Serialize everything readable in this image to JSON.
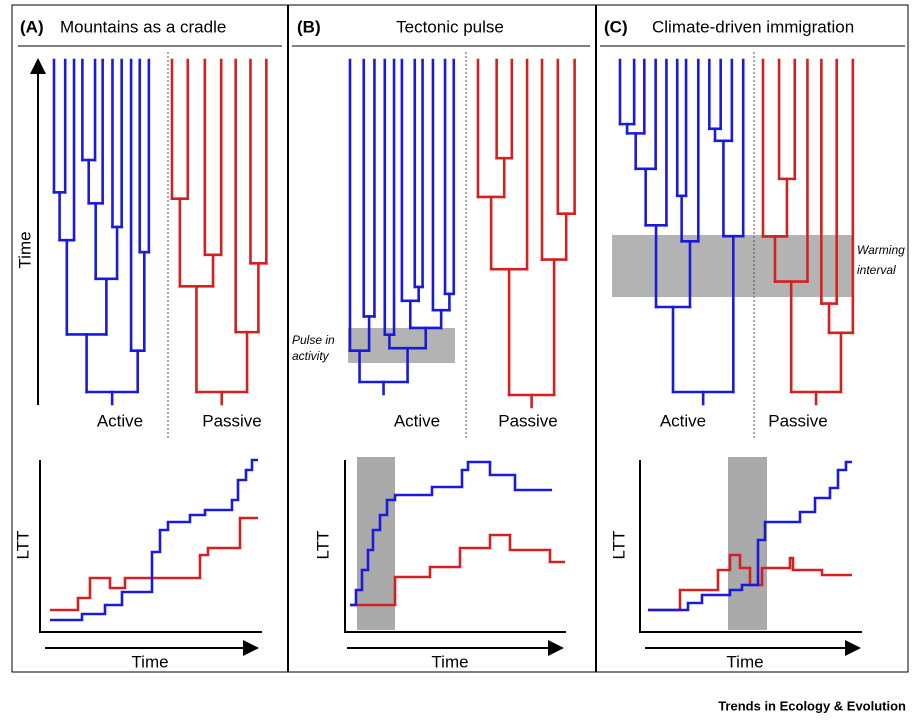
{
  "panels": [
    {
      "label": "(A)",
      "title": "Mountains as a cradle",
      "time_label": "Time",
      "tree_groups": [
        "Active",
        "Passive"
      ],
      "ltt_y_label": "LTT",
      "ltt_x_label": "Time"
    },
    {
      "label": "(B)",
      "title": "Tectonic pulse",
      "tree_groups": [
        "Active",
        "Passive"
      ],
      "annotation": [
        "Pulse in",
        "activity"
      ],
      "ltt_y_label": "LTT",
      "ltt_x_label": "Time"
    },
    {
      "label": "(C)",
      "title": "Climate-driven immigration",
      "tree_groups": [
        "Active",
        "Passive"
      ],
      "annotation": [
        "Warming",
        "interval"
      ],
      "ltt_y_label": "LTT",
      "ltt_x_label": "Time"
    }
  ],
  "footer": "Trends in Ecology & Evolution"
}
